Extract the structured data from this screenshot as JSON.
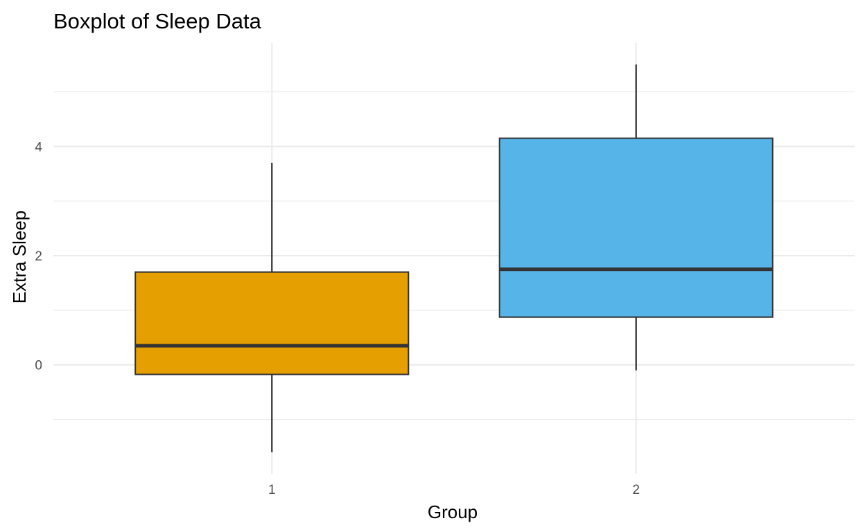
{
  "chart_data": {
    "type": "boxplot",
    "title": "Boxplot of Sleep Data",
    "xlabel": "Group",
    "ylabel": "Extra Sleep",
    "categories": [
      "1",
      "2"
    ],
    "boxes": [
      {
        "group": "1",
        "lower_whisker": -1.6,
        "q1": -0.175,
        "median": 0.35,
        "q3": 1.7,
        "upper_whisker": 3.7,
        "fill": "#E69F00"
      },
      {
        "group": "2",
        "lower_whisker": -0.1,
        "q1": 0.875,
        "median": 1.75,
        "q3": 4.15,
        "upper_whisker": 5.5,
        "fill": "#56B4E9"
      }
    ],
    "y_ticks": [
      0,
      2,
      4
    ],
    "ylim": [
      -1.995,
      5.895
    ],
    "grid": true,
    "colors": {
      "grid": "#ebebeb",
      "outline": "#333333",
      "whisker": "#1a1a1a"
    }
  }
}
